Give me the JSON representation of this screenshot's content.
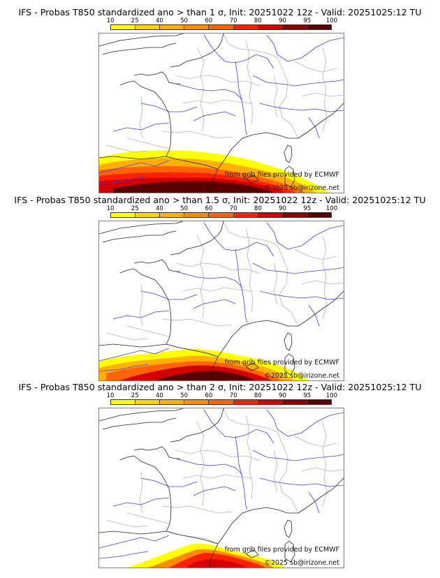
{
  "colorbar": {
    "ticks": [
      "10",
      "25",
      "40",
      "50",
      "60",
      "70",
      "80",
      "90",
      "95",
      "100"
    ],
    "colors": [
      "#ffff00",
      "#ffd400",
      "#ffb000",
      "#ff8c00",
      "#ff6400",
      "#ff2000",
      "#d40000",
      "#8b0000",
      "#5a0000"
    ]
  },
  "credits": {
    "source": "from grib files provided by ECMWF",
    "copyright": "©2025 sb@irizone.net"
  },
  "panels": [
    {
      "title": "IFS - Probas T850  standardized ano > than 1 σ, Init: 20251022 12z - Valid: 20251025:12 TU",
      "threshold_sigma": 1,
      "extent": "wide"
    },
    {
      "title": "IFS - Probas T850  standardized ano > than 1.5 σ, Init: 20251022 12z - Valid: 20251025:12 TU",
      "threshold_sigma": 1.5,
      "extent": "medium"
    },
    {
      "title": "IFS - Probas T850  standardized ano > than 2 σ, Init: 20251022 12z - Valid: 20251025:12 TU",
      "threshold_sigma": 2,
      "extent": "small"
    }
  ]
}
